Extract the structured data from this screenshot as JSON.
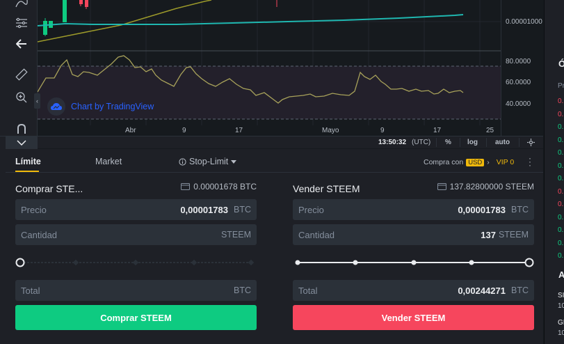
{
  "chart": {
    "price_ticks": [
      "80.0000",
      "60.0000",
      "40.0000"
    ],
    "main_price_label": "0.00001000",
    "time_labels": [
      "Abr",
      "9",
      "17",
      "Mayo",
      "9",
      "17",
      "25"
    ],
    "watermark": "Chart by TradingView",
    "status": {
      "time": "13:50:32",
      "timezone": "(UTC)",
      "percent": "%",
      "log": "log",
      "auto": "auto"
    },
    "colors": {
      "price_line": "#1fb7b0",
      "ma_line": "#9c9a2a",
      "rsi_line": "#a8a25a",
      "candle_up": "#0ecb81",
      "candle_down": "#f6465d",
      "rsi_band": "#2a1f2e"
    }
  },
  "right_panel": {
    "title_top": "Ó",
    "sub_top": "Pr",
    "numbers": [
      {
        "text": "0.",
        "color": "#f6465d"
      },
      {
        "text": "0.",
        "color": "#f6465d"
      },
      {
        "text": "0.",
        "color": "#0ecb81"
      },
      {
        "text": "0.",
        "color": "#0ecb81"
      },
      {
        "text": "0.",
        "color": "#0ecb81"
      },
      {
        "text": "0.",
        "color": "#0ecb81"
      },
      {
        "text": "0.",
        "color": "#0ecb81"
      },
      {
        "text": "0.",
        "color": "#f6465d"
      },
      {
        "text": "0.",
        "color": "#f6465d"
      },
      {
        "text": "0.",
        "color": "#0ecb81"
      },
      {
        "text": "0.",
        "color": "#0ecb81"
      },
      {
        "text": "0.",
        "color": "#0ecb81"
      },
      {
        "text": "0.",
        "color": "#0ecb81"
      }
    ],
    "title_bottom": "A",
    "rows_bottom": [
      "SI",
      "10",
      "GI",
      "10"
    ]
  },
  "tabs": {
    "limit": "Límite",
    "market": "Market",
    "stop_limit": "Stop-Limit"
  },
  "header_right": {
    "compra_con": "Compra con",
    "currency": "USD",
    "vip": "VIP 0"
  },
  "buy": {
    "title": "Comprar STE...",
    "balance": "0.00001678 BTC",
    "price_label": "Precio",
    "price_value": "0,00001783",
    "price_unit": "BTC",
    "qty_label": "Cantidad",
    "qty_unit": "STEEM",
    "total_label": "Total",
    "total_unit": "BTC",
    "button": "Comprar STEEM"
  },
  "sell": {
    "title": "Vender STEEM",
    "balance": "137.82800000 STEEM",
    "price_label": "Precio",
    "price_value": "0,00001783",
    "price_unit": "BTC",
    "qty_label": "Cantidad",
    "qty_value": "137",
    "qty_unit": "STEEM",
    "total_label": "Total",
    "total_value": "0,00244271",
    "total_unit": "BTC",
    "button": "Vender STEEM"
  },
  "sliders": {
    "buy_fraction": 0,
    "sell_fraction": 1
  }
}
